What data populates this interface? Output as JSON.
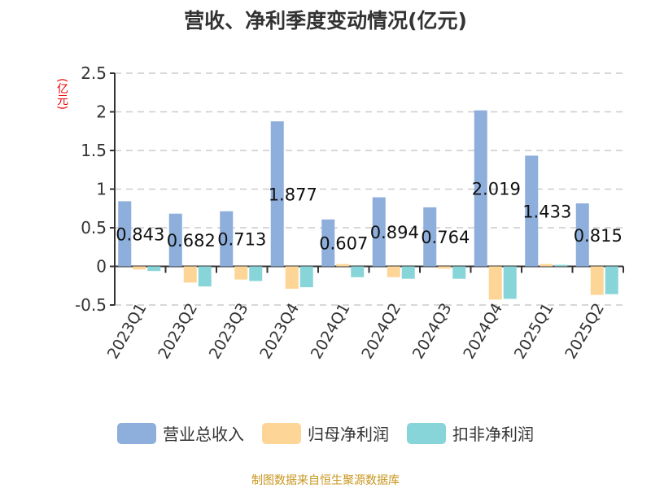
{
  "chart_data": {
    "type": "bar",
    "title": "营收、净利季度变动情况(亿元)",
    "ylabel": "(亿元)",
    "categories": [
      "2023Q1",
      "2023Q2",
      "2023Q3",
      "2023Q4",
      "2024Q1",
      "2024Q2",
      "2024Q3",
      "2024Q4",
      "2025Q1",
      "2025Q2"
    ],
    "ylim": [
      -0.5,
      2.5
    ],
    "yticks": [
      "-0.5",
      "0",
      "0.5",
      "1",
      "1.5",
      "2",
      "2.5"
    ],
    "grid": true,
    "legend": "bottom",
    "series": [
      {
        "name": "营业总收入",
        "color": "#8eaedb",
        "values": [
          0.843,
          0.682,
          0.713,
          1.877,
          0.607,
          0.894,
          0.764,
          2.019,
          1.433,
          0.815
        ],
        "labels": [
          "0.843",
          "0.682",
          "0.713",
          "1.877",
          "0.607",
          "0.894",
          "0.764",
          "2.019",
          "1.433",
          "0.815"
        ]
      },
      {
        "name": "归母净利润",
        "color": "#fdd697",
        "values": [
          -0.04,
          -0.21,
          -0.17,
          -0.29,
          0.03,
          -0.14,
          -0.03,
          -0.43,
          0.03,
          -0.37
        ]
      },
      {
        "name": "扣非净利润",
        "color": "#88d5d9",
        "values": [
          -0.06,
          -0.26,
          -0.19,
          -0.27,
          -0.14,
          -0.16,
          -0.16,
          -0.42,
          0.02,
          -0.36
        ]
      }
    ]
  },
  "source": "制图数据来自恒生聚源数据库"
}
